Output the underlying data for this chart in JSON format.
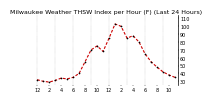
{
  "title": "Milwaukee Weather THSW Index per Hour (F) (Last 24 Hours)",
  "background_color": "#ffffff",
  "line_color": "#cc0000",
  "dot_color": "#000000",
  "grid_color": "#999999",
  "ylim": [
    25,
    115
  ],
  "yticks": [
    30,
    40,
    50,
    60,
    70,
    80,
    90,
    100,
    110
  ],
  "hours": [
    0,
    1,
    2,
    3,
    4,
    5,
    6,
    7,
    8,
    9,
    10,
    11,
    12,
    13,
    14,
    15,
    16,
    17,
    18,
    19,
    20,
    21,
    22,
    23
  ],
  "values": [
    32,
    30,
    29,
    31,
    34,
    33,
    35,
    40,
    55,
    70,
    75,
    68,
    85,
    103,
    100,
    85,
    88,
    80,
    65,
    55,
    48,
    42,
    38,
    35
  ],
  "title_fontsize": 4.5,
  "tick_fontsize": 3.5,
  "line_width": 0.8,
  "dot_size": 1.5,
  "vgrid_positions": [
    0,
    3,
    6,
    9,
    12,
    15,
    18,
    21
  ],
  "xtick_positions": [
    0,
    2,
    4,
    6,
    8,
    10,
    12,
    14,
    16,
    18,
    20,
    22
  ],
  "xtick_labels": [
    "12",
    "2",
    "4",
    "6",
    "8",
    "10",
    "12",
    "2",
    "4",
    "6",
    "8",
    "10"
  ]
}
